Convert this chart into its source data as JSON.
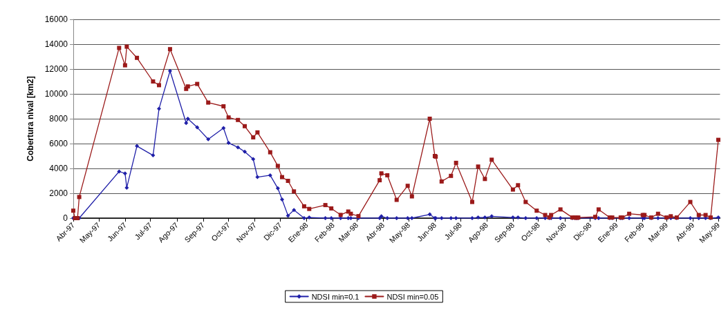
{
  "chart_data": {
    "type": "line",
    "ylabel": "Cobertura nival [km2]",
    "x": [
      "1997-04-01",
      "1997-04-03",
      "1997-04-06",
      "1997-04-08",
      "1997-05-25",
      "1997-06-01",
      "1997-06-03",
      "1997-06-15",
      "1997-07-04",
      "1997-07-11",
      "1997-07-24",
      "1997-08-12",
      "1997-08-14",
      "1997-08-25",
      "1997-09-07",
      "1997-09-25",
      "1997-10-01",
      "1997-10-12",
      "1997-10-20",
      "1997-10-30",
      "1997-11-04",
      "1997-11-19",
      "1997-11-28",
      "1997-12-03",
      "1997-12-10",
      "1997-12-17",
      "1997-12-29",
      "1998-01-04",
      "1998-01-23",
      "1998-01-30",
      "1998-02-10",
      "1998-02-19",
      "1998-02-22",
      "1998-03-03",
      "1998-03-28",
      "1998-03-30",
      "1998-04-06",
      "1998-04-17",
      "1998-04-30",
      "1998-05-05",
      "1998-05-26",
      "1998-06-01",
      "1998-06-02",
      "1998-06-09",
      "1998-06-20",
      "1998-06-26",
      "1998-07-15",
      "1998-07-22",
      "1998-07-30",
      "1998-08-07",
      "1998-09-01",
      "1998-09-07",
      "1998-09-16",
      "1998-09-29",
      "1998-10-09",
      "1998-10-14",
      "1998-10-16",
      "1998-10-27",
      "1998-11-10",
      "1998-11-13",
      "1998-11-15",
      "1998-11-17",
      "1998-12-07",
      "1998-12-11",
      "1998-12-24",
      "1998-12-27",
      "1999-01-06",
      "1999-01-08",
      "1999-01-16",
      "1999-02-01",
      "1999-02-03",
      "1999-02-11",
      "1999-02-19",
      "1999-03-01",
      "1999-03-06",
      "1999-03-13",
      "1999-03-29",
      "1999-04-08",
      "1999-04-16",
      "1999-04-22",
      "1999-05-01"
    ],
    "series": [
      {
        "name": "NDSI min=0.1",
        "color": "#1f1fa8",
        "marker": "diamond",
        "values": [
          0,
          0,
          0,
          0,
          3750,
          3600,
          2450,
          5800,
          5050,
          8800,
          11850,
          7650,
          8000,
          7300,
          6350,
          7250,
          6050,
          5700,
          5350,
          4750,
          3300,
          3450,
          2400,
          1500,
          200,
          650,
          0,
          50,
          0,
          0,
          0,
          0,
          0,
          0,
          0,
          150,
          0,
          0,
          0,
          0,
          300,
          0,
          0,
          0,
          0,
          0,
          0,
          50,
          50,
          150,
          50,
          50,
          0,
          0,
          0,
          0,
          0,
          0,
          0,
          0,
          0,
          0,
          0,
          0,
          0,
          0,
          0,
          0,
          0,
          0,
          0,
          0,
          0,
          0,
          0,
          0,
          0,
          0,
          0,
          0,
          50
        ]
      },
      {
        "name": "NDSI min=0.05",
        "color": "#9b1a1a",
        "marker": "square",
        "values": [
          600,
          0,
          0,
          1700,
          13700,
          12300,
          13800,
          12900,
          11000,
          10700,
          13600,
          10400,
          10600,
          10800,
          9300,
          9000,
          8100,
          7900,
          7400,
          6500,
          6900,
          5300,
          4200,
          3300,
          3000,
          2150,
          950,
          740,
          1050,
          780,
          260,
          530,
          350,
          160,
          3050,
          3600,
          3450,
          1470,
          2600,
          1750,
          8000,
          5000,
          4950,
          2950,
          3400,
          4450,
          1300,
          4150,
          3150,
          4700,
          2300,
          2650,
          1300,
          600,
          250,
          60,
          250,
          700,
          50,
          50,
          30,
          50,
          100,
          700,
          50,
          50,
          50,
          50,
          350,
          250,
          250,
          50,
          350,
          50,
          150,
          50,
          1300,
          250,
          250,
          50,
          6300
        ]
      }
    ],
    "xlim": [
      "1997-04-01",
      "1999-05-03"
    ],
    "xticks": [
      {
        "value": "1997-04-01",
        "label": "Abr-97"
      },
      {
        "value": "1997-05-01",
        "label": "May-97"
      },
      {
        "value": "1997-06-01",
        "label": "Jun-97"
      },
      {
        "value": "1997-07-01",
        "label": "Jul-97"
      },
      {
        "value": "1997-08-01",
        "label": "Ago-97"
      },
      {
        "value": "1997-09-01",
        "label": "Sep-97"
      },
      {
        "value": "1997-10-01",
        "label": "Oct-97"
      },
      {
        "value": "1997-11-01",
        "label": "Nov-97"
      },
      {
        "value": "1997-12-01",
        "label": "Dic-97"
      },
      {
        "value": "1998-01-01",
        "label": "Ene-98"
      },
      {
        "value": "1998-02-01",
        "label": "Feb-98"
      },
      {
        "value": "1998-03-01",
        "label": "Mar-98"
      },
      {
        "value": "1998-04-01",
        "label": "Abr-98"
      },
      {
        "value": "1998-05-01",
        "label": "May-98"
      },
      {
        "value": "1998-06-01",
        "label": "Jun-98"
      },
      {
        "value": "1998-07-01",
        "label": "Jul-98"
      },
      {
        "value": "1998-08-01",
        "label": "Ago-98"
      },
      {
        "value": "1998-09-01",
        "label": "Sep-98"
      },
      {
        "value": "1998-10-01",
        "label": "Oct-98"
      },
      {
        "value": "1998-11-01",
        "label": "Nov-98"
      },
      {
        "value": "1998-12-01",
        "label": "Dic-98"
      },
      {
        "value": "1999-01-01",
        "label": "Ene-99"
      },
      {
        "value": "1999-02-01",
        "label": "Feb-99"
      },
      {
        "value": "1999-03-01",
        "label": "Mar-99"
      },
      {
        "value": "1999-04-01",
        "label": "Abr-99"
      },
      {
        "value": "1999-05-01",
        "label": "May-99"
      }
    ],
    "ylim": [
      0,
      16000
    ],
    "yticks": [
      0,
      2000,
      4000,
      6000,
      8000,
      10000,
      12000,
      14000,
      16000
    ],
    "grid": "y",
    "legend": "bottom"
  }
}
